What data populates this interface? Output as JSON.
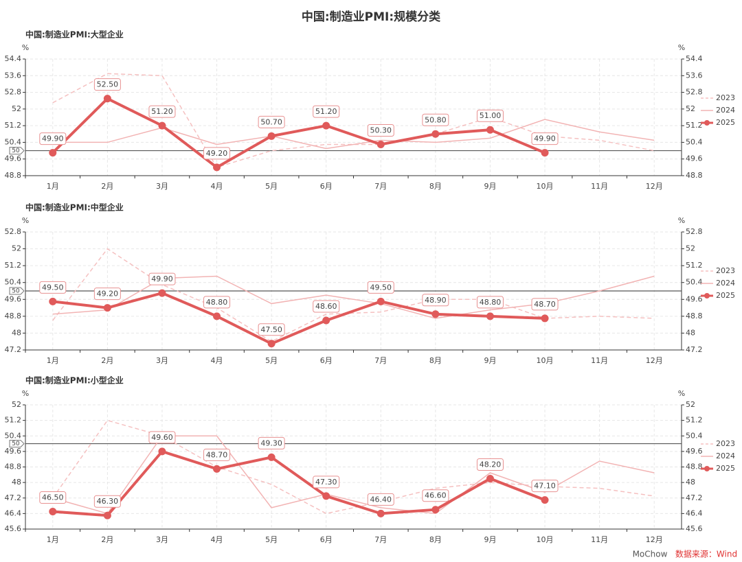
{
  "title": "中国:制造业PMI:规模分类",
  "footer": {
    "author": "MoChow",
    "source": "数据来源：Wind"
  },
  "chart_data": [
    {
      "type": "line",
      "title": "中国:制造业PMI:大型企业",
      "y_unit": "%",
      "grid": true,
      "legend": "right",
      "markline": 50,
      "categories": [
        "1月",
        "2月",
        "3月",
        "4月",
        "5月",
        "6月",
        "7月",
        "8月",
        "9月",
        "10月",
        "11月",
        "12月"
      ],
      "ylim": [
        48.8,
        54.4
      ],
      "yticks": [
        48.8,
        49.6,
        50.4,
        51.2,
        52,
        52.8,
        53.6,
        54.4
      ],
      "series": [
        {
          "name": "2023",
          "color": "#f5c0c0",
          "dashed": true,
          "values": [
            52.3,
            53.7,
            53.6,
            49.2,
            50.0,
            50.3,
            50.3,
            50.8,
            51.6,
            50.7,
            50.5,
            50.0
          ]
        },
        {
          "name": "2024",
          "color": "#f2b3b3",
          "dashed": false,
          "values": [
            50.4,
            50.4,
            51.1,
            50.3,
            50.7,
            50.1,
            50.5,
            50.4,
            50.6,
            51.5,
            50.9,
            50.5
          ]
        },
        {
          "name": "2025",
          "color": "#e05a5a",
          "dashed": false,
          "markers": true,
          "values": [
            49.9,
            52.5,
            51.2,
            49.2,
            50.7,
            51.2,
            50.3,
            50.8,
            51.0,
            49.9,
            null,
            null
          ],
          "value_labels": [
            "49.90",
            "52.50",
            "51.20",
            "49.20",
            "50.70",
            "51.20",
            "50.30",
            "50.80",
            "51.00",
            "49.90",
            null,
            null
          ]
        }
      ]
    },
    {
      "type": "line",
      "title": "中国:制造业PMI:中型企业",
      "y_unit": "%",
      "grid": true,
      "legend": "right",
      "markline": 50,
      "categories": [
        "1月",
        "2月",
        "3月",
        "4月",
        "5月",
        "6月",
        "7月",
        "8月",
        "9月",
        "10月",
        "11月",
        "12月"
      ],
      "ylim": [
        47.2,
        52.8
      ],
      "yticks": [
        47.2,
        48,
        48.8,
        49.6,
        50.4,
        51.2,
        52,
        52.8
      ],
      "series": [
        {
          "name": "2023",
          "color": "#f5c0c0",
          "dashed": true,
          "values": [
            48.6,
            52.0,
            50.3,
            49.2,
            47.6,
            48.9,
            49.0,
            49.6,
            49.6,
            48.7,
            48.8,
            48.7
          ]
        },
        {
          "name": "2024",
          "color": "#f2b3b3",
          "dashed": false,
          "values": [
            48.9,
            49.1,
            50.6,
            50.7,
            49.4,
            49.8,
            49.4,
            48.7,
            49.1,
            49.4,
            50.0,
            50.7
          ]
        },
        {
          "name": "2025",
          "color": "#e05a5a",
          "dashed": false,
          "markers": true,
          "values": [
            49.5,
            49.2,
            49.9,
            48.8,
            47.5,
            48.6,
            49.5,
            48.9,
            48.8,
            48.7,
            null,
            null
          ],
          "value_labels": [
            "49.50",
            "49.20",
            "49.90",
            "48.80",
            "47.50",
            "48.60",
            "49.50",
            "48.90",
            "48.80",
            "48.70",
            null,
            null
          ]
        }
      ]
    },
    {
      "type": "line",
      "title": "中国:制造业PMI:小型企业",
      "y_unit": "%",
      "grid": true,
      "legend": "right",
      "markline": 50,
      "categories": [
        "1月",
        "2月",
        "3月",
        "4月",
        "5月",
        "6月",
        "7月",
        "8月",
        "9月",
        "10月",
        "11月",
        "12月"
      ],
      "ylim": [
        45.6,
        52
      ],
      "yticks": [
        45.6,
        46.4,
        47.2,
        48,
        48.8,
        49.6,
        50.4,
        51.2,
        52
      ],
      "series": [
        {
          "name": "2023",
          "color": "#f5c0c0",
          "dashed": true,
          "values": [
            47.2,
            51.2,
            50.4,
            48.8,
            47.9,
            46.4,
            47.0,
            47.7,
            48.0,
            47.8,
            47.7,
            47.3
          ]
        },
        {
          "name": "2024",
          "color": "#f2b3b3",
          "dashed": false,
          "values": [
            47.2,
            46.4,
            50.4,
            50.4,
            46.7,
            47.4,
            46.7,
            46.4,
            48.5,
            47.5,
            49.1,
            48.5
          ]
        },
        {
          "name": "2025",
          "color": "#e05a5a",
          "dashed": false,
          "markers": true,
          "values": [
            46.5,
            46.3,
            49.6,
            48.7,
            49.3,
            47.3,
            46.4,
            46.6,
            48.2,
            47.1,
            null,
            null
          ],
          "value_labels": [
            "46.50",
            "46.30",
            "49.60",
            "48.70",
            "49.30",
            "47.30",
            "46.40",
            "46.60",
            "48.20",
            "47.10",
            null,
            null
          ]
        }
      ]
    }
  ]
}
